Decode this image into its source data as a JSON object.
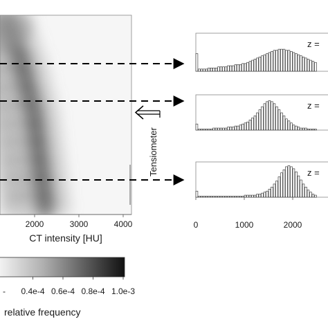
{
  "chart_data": [
    {
      "type": "heatmap",
      "xlabel": "CT intensity [HU]",
      "xticks": [
        2000,
        3000,
        4000
      ],
      "xlim": [
        0,
        4100
      ],
      "colorbar": {
        "label": "relative frequency",
        "ticks": [
          "-",
          "0.4e-4",
          "0.6e-4",
          "0.8e-4",
          "1.0e-3"
        ],
        "range": [
          0,
          0.001
        ]
      },
      "ridge_hu_by_depth": [
        1400,
        1550,
        1700,
        1800,
        1900,
        2000,
        2050,
        2100,
        2150,
        2200,
        2250
      ]
    },
    {
      "type": "bar",
      "title": "z =",
      "x_start": 0,
      "x_step": 50,
      "xticks": [
        0,
        1000,
        2000
      ],
      "values": [
        16,
        2,
        2,
        2,
        2,
        3,
        3,
        3,
        3,
        4,
        4,
        4,
        4,
        5,
        5,
        5,
        6,
        6,
        6,
        7,
        7,
        8,
        9,
        10,
        11,
        12,
        13,
        14,
        15,
        16,
        17,
        18,
        19,
        19,
        20,
        20,
        20,
        19,
        19,
        18,
        17,
        16,
        15,
        14,
        13,
        12,
        11,
        10,
        9,
        8
      ]
    },
    {
      "type": "bar",
      "title": "z =",
      "x_start": 0,
      "x_step": 50,
      "xticks": [
        0,
        1000,
        2000
      ],
      "values": [
        6,
        1,
        1,
        1,
        1,
        1,
        1,
        2,
        2,
        2,
        2,
        2,
        2,
        3,
        3,
        3,
        4,
        4,
        5,
        6,
        7,
        8,
        10,
        12,
        14,
        17,
        20,
        23,
        26,
        28,
        29,
        28,
        26,
        23,
        20,
        17,
        14,
        11,
        9,
        7,
        5,
        4,
        3,
        2,
        2,
        2,
        1,
        1,
        1,
        1
      ]
    },
    {
      "type": "bar",
      "title": "z =",
      "x_start": 0,
      "x_step": 50,
      "xticks": [
        0,
        1000,
        2000
      ],
      "values": [
        6,
        1,
        1,
        1,
        1,
        1,
        1,
        1,
        1,
        1,
        1,
        1,
        1,
        1,
        1,
        1,
        1,
        1,
        1,
        1,
        2,
        2,
        2,
        2,
        2,
        3,
        3,
        4,
        5,
        6,
        8,
        10,
        13,
        16,
        20,
        24,
        27,
        30,
        31,
        30,
        28,
        25,
        21,
        17,
        13,
        10,
        7,
        5,
        3,
        2
      ]
    }
  ],
  "annotation": {
    "tensiometer": "Tensiometer"
  }
}
